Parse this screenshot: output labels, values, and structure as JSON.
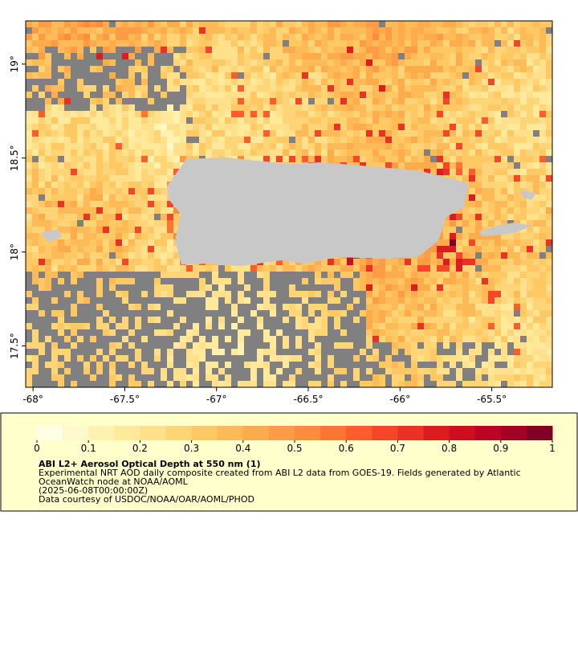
{
  "map": {
    "xlim": [
      -68.04,
      -65.17
    ],
    "ylim": [
      17.28,
      19.23
    ],
    "xticks": [
      {
        "value": -68,
        "label": "-68°"
      },
      {
        "value": -67.5,
        "label": "-67.5°"
      },
      {
        "value": -67,
        "label": "-67°"
      },
      {
        "value": -66.5,
        "label": "-66.5°"
      },
      {
        "value": -66,
        "label": "-66°"
      },
      {
        "value": -65.5,
        "label": "-65.5°"
      }
    ],
    "yticks": [
      {
        "value": 19,
        "label": "19°"
      },
      {
        "value": 18.5,
        "label": "18.5°"
      },
      {
        "value": 18,
        "label": "18°"
      },
      {
        "value": 17.5,
        "label": "17.5°"
      }
    ]
  },
  "colorbar": {
    "range": [
      0,
      1
    ],
    "ticks": [
      0,
      0.1,
      0.2,
      0.3,
      0.4,
      0.5,
      0.6,
      0.7,
      0.8,
      0.9,
      1
    ],
    "colors": [
      "#ffffe6",
      "#fff8cc",
      "#fff1b0",
      "#ffe99a",
      "#fee18a",
      "#fed576",
      "#fec865",
      "#feba57",
      "#feab4b",
      "#fd9c44",
      "#fd8c3d",
      "#fc7535",
      "#fc5c2e",
      "#f4472a",
      "#e93223",
      "#dc1d1f",
      "#cc0e21",
      "#bb0526",
      "#a30026",
      "#820026"
    ],
    "missing_color": "#808080",
    "land_color": "#c8c8c8"
  },
  "caption": {
    "title": "ABI L2+ Aerosol Optical Depth at 550 nm (1)",
    "lines": [
      "Experimental NRT AOD daily composite created from ABI L2 data from GOES-19. Fields generated by Atlantic",
      "OceanWatch node at NOAA/AOML",
      "(2025-06-08T00:00:00Z)",
      "Data courtesy of USDOC/NOAA/OAR/AOML/PHOD"
    ]
  }
}
